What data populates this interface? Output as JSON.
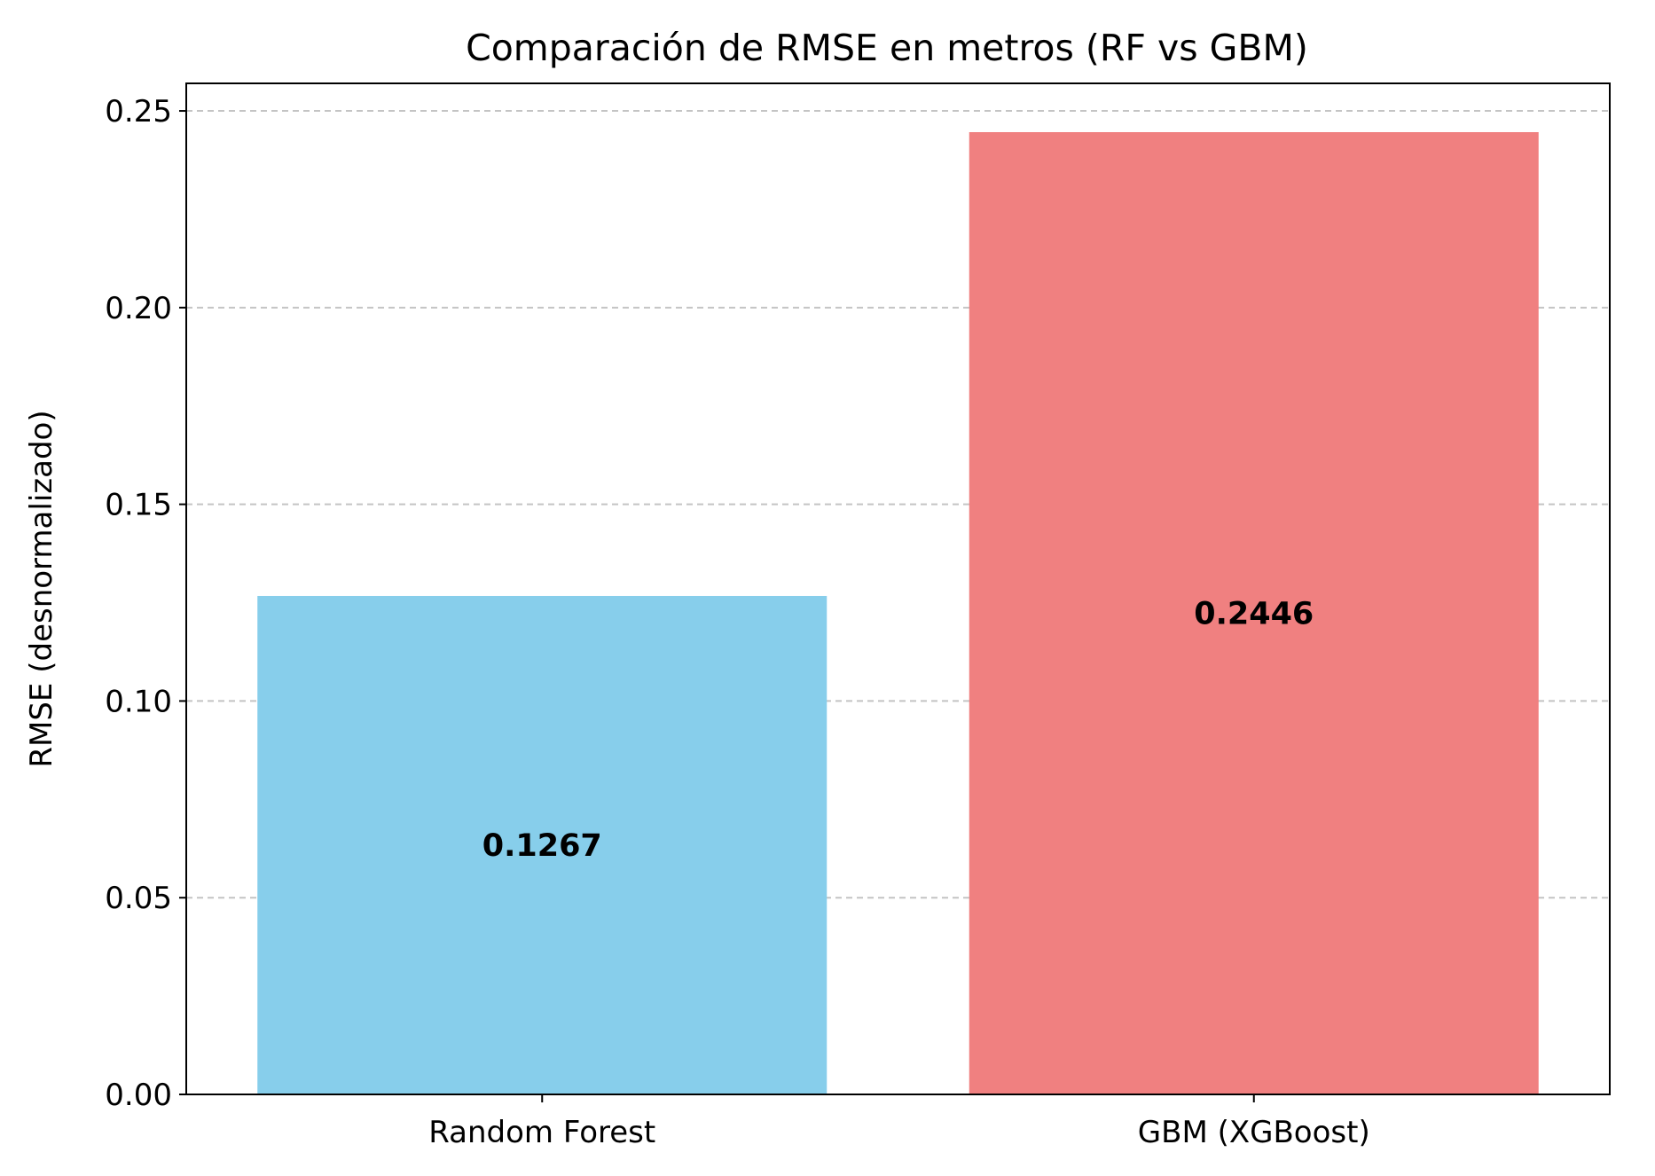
{
  "chart_data": {
    "type": "bar",
    "title": "Comparación de RMSE en metros (RF vs GBM)",
    "xlabel": "",
    "ylabel": "RMSE (desnormalizado)",
    "categories": [
      "Random Forest",
      "GBM (XGBoost)"
    ],
    "values": [
      0.1267,
      0.2446
    ],
    "value_labels": [
      "0.1267",
      "0.2446"
    ],
    "colors": [
      "#87ceeb",
      "#f08080"
    ],
    "ylim": [
      0,
      0.257
    ],
    "yticks": [
      0.0,
      0.05,
      0.1,
      0.15,
      0.2,
      0.25
    ],
    "ytick_labels": [
      "0.00",
      "0.05",
      "0.10",
      "0.15",
      "0.20",
      "0.25"
    ],
    "grid": "y-dashed",
    "legend": "none"
  }
}
